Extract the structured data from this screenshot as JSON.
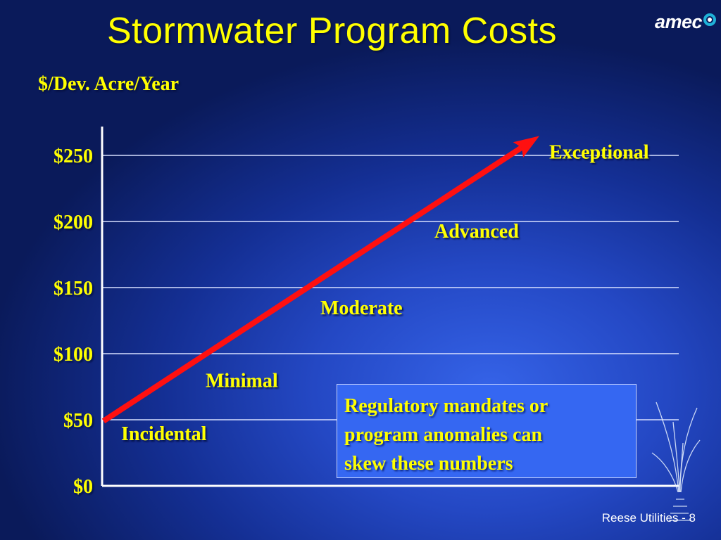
{
  "slide": {
    "title": "Stormwater Program Costs",
    "logo_text": "amec",
    "unit_label": "$/Dev. Acre/Year",
    "callout_text": "Regulatory mandates  or\nprogram anomalies can\nskew these numbers",
    "footer": "Reese Utilities - 8",
    "colors": {
      "text": "#ffff00",
      "arrow": "#ff0000",
      "grid": "#ffffff",
      "background": "#1f3fb5"
    }
  },
  "chart_data": {
    "type": "line",
    "title": "Stormwater Program Costs",
    "ylabel": "$/Dev. Acre/Year",
    "ylim": [
      0,
      250
    ],
    "yticks": [
      0,
      50,
      100,
      150,
      200,
      250
    ],
    "ytick_labels": [
      "$0",
      "$50",
      "$100",
      "$150",
      "$200",
      "$250"
    ],
    "grid": true,
    "categories": [
      "Incidental",
      "Minimal",
      "Moderate",
      "Advanced",
      "Exceptional"
    ],
    "series": [
      {
        "values": [
          40,
          80,
          135,
          193,
          253
        ]
      }
    ]
  }
}
